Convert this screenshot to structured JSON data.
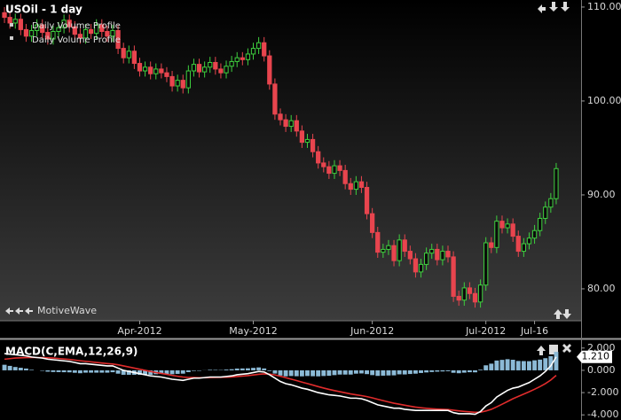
{
  "chart_data": [
    {
      "type": "candlestick",
      "title": "USOil - 1 day",
      "legend": [
        "Daily Volume Profile",
        "Daily Volume Profile"
      ],
      "watermark": "MotiveWave",
      "categories": [
        null,
        null,
        null,
        null,
        null,
        null,
        null,
        null,
        null,
        null,
        null,
        null,
        null,
        null,
        null,
        null,
        null,
        null,
        null,
        null,
        null,
        null,
        null,
        null,
        null,
        "Apr-2012",
        null,
        null,
        null,
        null,
        null,
        null,
        null,
        null,
        null,
        null,
        null,
        null,
        null,
        null,
        null,
        null,
        null,
        null,
        null,
        null,
        "May-2012",
        null,
        null,
        null,
        null,
        null,
        null,
        null,
        null,
        null,
        null,
        null,
        null,
        null,
        null,
        null,
        null,
        null,
        null,
        null,
        null,
        null,
        "Jun-2012",
        null,
        null,
        null,
        null,
        null,
        null,
        null,
        null,
        null,
        null,
        null,
        null,
        null,
        null,
        null,
        null,
        null,
        null,
        null,
        null,
        "Jul-2012",
        null,
        null,
        null,
        null,
        null,
        null,
        null,
        null,
        "Jul-16",
        null,
        null,
        null,
        null
      ],
      "open": [
        109.4,
        108.9,
        108.3,
        108.7,
        107.6,
        106.9,
        107.5,
        108.1,
        107.3,
        106.6,
        107.4,
        107.8,
        108.6,
        107.9,
        107.1,
        106.7,
        107.6,
        107.2,
        108.1,
        107.4,
        106.9,
        107.5,
        105.6,
        104.6,
        105.3,
        104.0,
        103.2,
        103.6,
        102.9,
        103.4,
        103.0,
        102.6,
        101.6,
        102.2,
        101.4,
        103.2,
        103.9,
        103.1,
        103.6,
        104.1,
        103.4,
        103.0,
        103.7,
        104.2,
        104.6,
        104.4,
        105.0,
        105.6,
        106.2,
        104.8,
        101.8,
        98.6,
        98.0,
        97.3,
        97.9,
        96.8,
        95.6,
        95.9,
        94.6,
        93.4,
        93.0,
        92.3,
        93.1,
        92.6,
        91.2,
        90.6,
        91.4,
        90.8,
        88.0,
        86.0,
        83.9,
        84.2,
        84.6,
        83.0,
        85.2,
        84.0,
        83.2,
        81.8,
        82.6,
        83.8,
        84.2,
        83.1,
        84.0,
        83.4,
        79.2,
        78.8,
        80.1,
        79.5,
        78.6,
        80.4,
        84.9,
        84.4,
        87.2,
        86.5,
        86.9,
        85.6,
        84.0,
        84.8,
        85.4,
        86.2,
        87.5,
        88.7,
        89.6
      ],
      "high": [
        110.0,
        109.5,
        109.3,
        109.3,
        108.2,
        108.1,
        108.7,
        108.7,
        107.9,
        108.0,
        108.4,
        109.2,
        109.2,
        108.5,
        107.7,
        108.2,
        108.2,
        108.7,
        108.7,
        108.0,
        108.1,
        108.1,
        106.2,
        105.9,
        105.9,
        104.6,
        104.2,
        104.2,
        104.0,
        104.0,
        103.6,
        103.2,
        102.8,
        102.8,
        103.8,
        104.5,
        104.5,
        104.2,
        104.7,
        104.7,
        104.0,
        104.3,
        104.8,
        105.2,
        105.2,
        105.6,
        106.2,
        106.8,
        106.8,
        105.4,
        102.4,
        99.2,
        98.6,
        98.5,
        98.5,
        97.4,
        96.5,
        96.5,
        95.2,
        94.0,
        93.6,
        93.7,
        93.7,
        93.2,
        91.8,
        92.0,
        92.0,
        91.4,
        88.6,
        86.6,
        84.8,
        85.2,
        85.2,
        85.8,
        85.8,
        84.6,
        83.8,
        83.2,
        84.4,
        84.8,
        84.8,
        84.6,
        84.6,
        84.0,
        79.8,
        80.7,
        80.7,
        80.1,
        81.0,
        85.5,
        85.5,
        87.8,
        87.8,
        87.5,
        87.5,
        86.2,
        85.4,
        86.0,
        86.8,
        88.1,
        89.3,
        90.2,
        93.4
      ],
      "low": [
        108.3,
        107.7,
        107.7,
        107.0,
        106.3,
        106.3,
        106.9,
        106.7,
        106.0,
        106.0,
        106.8,
        107.2,
        107.3,
        106.5,
        106.1,
        106.1,
        106.6,
        106.6,
        106.8,
        106.3,
        106.3,
        105.0,
        104.0,
        104.0,
        103.4,
        102.6,
        102.6,
        102.3,
        102.3,
        102.4,
        102.0,
        101.0,
        101.0,
        100.8,
        100.8,
        102.6,
        102.5,
        102.5,
        103.0,
        102.8,
        102.4,
        102.4,
        103.1,
        103.6,
        103.8,
        103.8,
        104.4,
        105.0,
        104.2,
        101.2,
        98.0,
        97.4,
        96.7,
        96.7,
        96.2,
        95.0,
        95.0,
        94.0,
        92.8,
        92.4,
        91.7,
        91.7,
        92.0,
        90.6,
        90.0,
        90.0,
        90.2,
        87.4,
        85.4,
        83.3,
        83.3,
        83.6,
        82.4,
        82.4,
        83.4,
        82.6,
        81.2,
        81.2,
        82.0,
        83.2,
        82.5,
        82.5,
        82.8,
        78.6,
        78.2,
        78.2,
        78.9,
        78.0,
        78.0,
        79.8,
        83.8,
        83.8,
        85.9,
        85.9,
        85.0,
        83.4,
        83.4,
        84.2,
        84.8,
        85.6,
        86.9,
        88.1,
        89.0
      ],
      "close": [
        108.9,
        108.3,
        108.7,
        107.6,
        106.9,
        107.5,
        108.1,
        107.3,
        106.6,
        107.4,
        107.8,
        108.6,
        107.9,
        107.1,
        106.7,
        107.6,
        107.2,
        108.1,
        107.4,
        106.9,
        107.5,
        105.6,
        104.6,
        105.3,
        104.0,
        103.2,
        103.6,
        102.9,
        103.4,
        103.0,
        102.6,
        101.6,
        102.2,
        101.4,
        103.2,
        103.9,
        103.1,
        103.6,
        104.1,
        103.4,
        103.0,
        103.7,
        104.2,
        104.6,
        104.4,
        105.0,
        105.6,
        106.2,
        104.8,
        101.8,
        98.6,
        98.0,
        97.3,
        97.9,
        96.8,
        95.6,
        95.9,
        94.6,
        93.4,
        93.0,
        92.3,
        93.1,
        92.6,
        91.2,
        90.6,
        91.4,
        90.8,
        88.0,
        86.0,
        83.9,
        84.2,
        84.6,
        83.0,
        85.2,
        84.0,
        83.2,
        81.8,
        82.6,
        83.8,
        84.2,
        83.1,
        84.0,
        83.4,
        79.2,
        78.8,
        80.1,
        79.5,
        78.6,
        80.4,
        84.9,
        84.4,
        87.2,
        86.5,
        86.9,
        85.6,
        84.0,
        84.8,
        85.4,
        86.2,
        87.5,
        88.7,
        89.6,
        92.8
      ],
      "up_color": "#3ecf3e",
      "down_color": "#e8454e",
      "ylim": [
        76.6,
        110.75
      ],
      "yticks": [
        {
          "value": 80,
          "label": "80.00"
        },
        {
          "value": 90,
          "label": "90.00"
        },
        {
          "value": 100,
          "label": "100.00"
        },
        {
          "value": 110,
          "label": "110.00"
        }
      ]
    },
    {
      "type": "macd",
      "title": "MACD(C,EMA,12,26,9)",
      "current_value_label": "1.210",
      "series": [
        {
          "kind": "bar",
          "color": "#8cbad6",
          "values": [
            0.5,
            0.4,
            0.3,
            0.23,
            0.16,
            0.05,
            0.0,
            -0.04,
            -0.12,
            -0.15,
            -0.16,
            -0.17,
            -0.18,
            -0.22,
            -0.26,
            -0.21,
            -0.21,
            -0.21,
            -0.21,
            -0.21,
            -0.17,
            -0.3,
            -0.4,
            -0.4,
            -0.4,
            -0.4,
            -0.4,
            -0.4,
            -0.35,
            -0.32,
            -0.34,
            -0.35,
            -0.32,
            -0.3,
            -0.16,
            -0.05,
            -0.04,
            0.01,
            0.05,
            0.04,
            0.03,
            0.07,
            0.1,
            0.16,
            0.17,
            0.18,
            0.22,
            0.26,
            0.17,
            -0.06,
            -0.29,
            -0.47,
            -0.54,
            -0.51,
            -0.53,
            -0.54,
            -0.51,
            -0.53,
            -0.54,
            -0.51,
            -0.49,
            -0.43,
            -0.38,
            -0.38,
            -0.38,
            -0.3,
            -0.28,
            -0.34,
            -0.43,
            -0.5,
            -0.48,
            -0.46,
            -0.45,
            -0.36,
            -0.37,
            -0.33,
            -0.3,
            -0.24,
            -0.19,
            -0.15,
            -0.12,
            -0.1,
            -0.08,
            -0.22,
            -0.26,
            -0.21,
            -0.17,
            -0.18,
            0.06,
            0.45,
            0.6,
            0.88,
            0.94,
            1.0,
            0.95,
            0.84,
            0.83,
            0.82,
            0.9,
            0.96,
            1.09,
            1.27,
            1.66
          ]
        },
        {
          "kind": "line",
          "color": "#e02c2c",
          "values": [
            1.0,
            1.05,
            1.1,
            1.12,
            1.14,
            1.15,
            1.15,
            1.14,
            1.12,
            1.1,
            1.06,
            1.02,
            0.98,
            0.92,
            0.86,
            0.81,
            0.76,
            0.71,
            0.66,
            0.61,
            0.57,
            0.5,
            0.4,
            0.3,
            0.2,
            0.1,
            0.0,
            -0.1,
            -0.2,
            -0.28,
            -0.36,
            -0.45,
            -0.53,
            -0.6,
            -0.64,
            -0.65,
            -0.66,
            -0.66,
            -0.65,
            -0.64,
            -0.63,
            -0.62,
            -0.6,
            -0.56,
            -0.52,
            -0.48,
            -0.42,
            -0.36,
            -0.32,
            -0.34,
            -0.41,
            -0.53,
            -0.66,
            -0.79,
            -0.92,
            -1.06,
            -1.19,
            -1.32,
            -1.46,
            -1.59,
            -1.71,
            -1.82,
            -1.92,
            -2.02,
            -2.12,
            -2.2,
            -2.27,
            -2.36,
            -2.47,
            -2.6,
            -2.72,
            -2.84,
            -2.95,
            -3.04,
            -3.13,
            -3.22,
            -3.3,
            -3.36,
            -3.41,
            -3.45,
            -3.48,
            -3.5,
            -3.52,
            -3.58,
            -3.64,
            -3.69,
            -3.73,
            -3.77,
            -3.76,
            -3.65,
            -3.5,
            -3.28,
            -3.04,
            -2.8,
            -2.55,
            -2.34,
            -2.13,
            -1.92,
            -1.7,
            -1.46,
            -1.19,
            -0.87,
            -0.45
          ]
        },
        {
          "kind": "line",
          "color": "#ffffff",
          "values": [
            1.5,
            1.45,
            1.4,
            1.35,
            1.3,
            1.2,
            1.15,
            1.1,
            1.0,
            0.95,
            0.9,
            0.85,
            0.8,
            0.7,
            0.6,
            0.6,
            0.55,
            0.5,
            0.45,
            0.4,
            0.4,
            0.2,
            0.0,
            -0.1,
            -0.2,
            -0.3,
            -0.4,
            -0.5,
            -0.55,
            -0.6,
            -0.7,
            -0.8,
            -0.85,
            -0.9,
            -0.8,
            -0.7,
            -0.7,
            -0.65,
            -0.6,
            -0.6,
            -0.6,
            -0.55,
            -0.5,
            -0.4,
            -0.35,
            -0.3,
            -0.2,
            -0.1,
            -0.15,
            -0.4,
            -0.7,
            -1.0,
            -1.2,
            -1.3,
            -1.45,
            -1.6,
            -1.7,
            -1.85,
            -2.0,
            -2.1,
            -2.2,
            -2.25,
            -2.3,
            -2.4,
            -2.5,
            -2.5,
            -2.55,
            -2.7,
            -2.9,
            -3.1,
            -3.2,
            -3.3,
            -3.4,
            -3.4,
            -3.5,
            -3.55,
            -3.6,
            -3.6,
            -3.6,
            -3.6,
            -3.6,
            -3.6,
            -3.6,
            -3.8,
            -3.9,
            -3.9,
            -3.9,
            -3.95,
            -3.7,
            -3.2,
            -2.9,
            -2.4,
            -2.1,
            -1.8,
            -1.6,
            -1.5,
            -1.3,
            -1.1,
            -0.8,
            -0.5,
            -0.1,
            0.4,
            1.21
          ]
        }
      ],
      "ylim": [
        -4.3,
        2.7
      ],
      "yticks": [
        {
          "value": 2,
          "label": "2.000"
        },
        {
          "value": 0,
          "label": "0.000"
        },
        {
          "value": -2,
          "label": "-2.000"
        },
        {
          "value": -4,
          "label": "-4.000"
        }
      ]
    }
  ]
}
